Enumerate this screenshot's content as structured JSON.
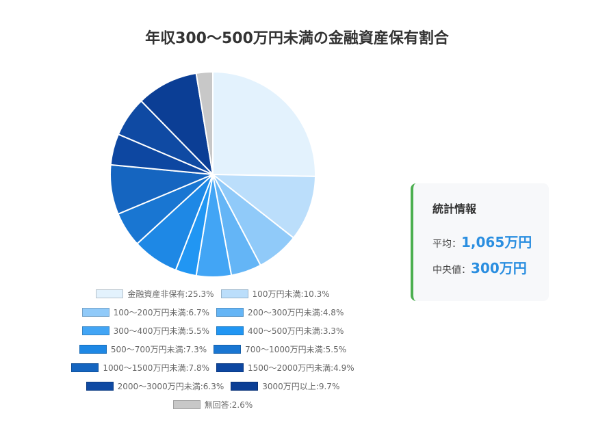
{
  "chart_data": {
    "type": "pie",
    "title": "年収300〜500万円未満の金融資産保有割合",
    "categories": [
      "金融資産非保有",
      "100万円未満",
      "100〜200万円未満",
      "200〜300万円未満",
      "300〜400万円未満",
      "400〜500万円未満",
      "500〜700万円未満",
      "700〜1000万円未満",
      "1000〜1500万円未満",
      "1500〜2000万円未満",
      "2000〜3000万円未満",
      "3000万円以上",
      "無回答"
    ],
    "values": [
      25.3,
      10.3,
      6.7,
      4.8,
      5.5,
      3.3,
      7.3,
      5.5,
      7.8,
      4.9,
      6.3,
      9.7,
      2.6
    ],
    "value_labels": [
      "25.3%",
      "10.3%",
      "6.7%",
      "4.8%",
      "5.5%",
      "3.3%",
      "7.3%",
      "5.5%",
      "7.8%",
      "4.9%",
      "6.3%",
      "9.7%",
      "2.6%"
    ],
    "colors": [
      "#e3f2fd",
      "#bbdefb",
      "#90caf9",
      "#64b5f6",
      "#42a5f5",
      "#2196f3",
      "#1e88e5",
      "#1976d2",
      "#1565c0",
      "#0d47a1",
      "#0f4aa3",
      "#0b3e95",
      "#c8c8c8"
    ]
  },
  "stats": {
    "title": "統計情報",
    "rows": [
      {
        "label": "平均：",
        "value": "1,065万円"
      },
      {
        "label": "中央値：",
        "value": "300万円"
      }
    ]
  }
}
